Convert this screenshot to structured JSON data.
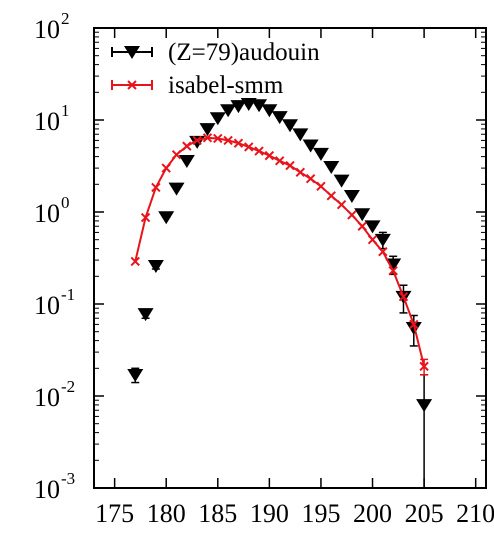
{
  "chart_data": {
    "type": "scatter",
    "title": "",
    "xlabel": "",
    "ylabel": "",
    "xlim": [
      173,
      211
    ],
    "ylim": [
      0.001,
      100
    ],
    "yscale": "log",
    "grid": false,
    "legend_position": "top-right",
    "x_ticks": [
      "175",
      "180",
      "185",
      "190",
      "195",
      "200",
      "205",
      "210"
    ],
    "y_ticks": [
      {
        "base": "10",
        "exp": "2"
      },
      {
        "base": "10",
        "exp": "1"
      },
      {
        "base": "10",
        "exp": "0"
      },
      {
        "base": "10",
        "exp": "-1"
      },
      {
        "base": "10",
        "exp": "-2"
      },
      {
        "base": "10",
        "exp": "-3"
      }
    ],
    "series": [
      {
        "name": "(Z=79)audouin",
        "color": "#000000",
        "marker": "filled-triangle-down",
        "points": [
          {
            "x": 177,
            "y": 0.017,
            "err": 0.003
          },
          {
            "x": 178,
            "y": 0.078,
            "err": 0.008
          },
          {
            "x": 179,
            "y": 0.26,
            "err": 0.02
          },
          {
            "x": 180,
            "y": 0.88
          },
          {
            "x": 181,
            "y": 1.8
          },
          {
            "x": 182,
            "y": 3.6
          },
          {
            "x": 183,
            "y": 5.8
          },
          {
            "x": 184,
            "y": 8.0
          },
          {
            "x": 185,
            "y": 10.5
          },
          {
            "x": 186,
            "y": 12.8
          },
          {
            "x": 187,
            "y": 14.2
          },
          {
            "x": 188,
            "y": 15.0
          },
          {
            "x": 189,
            "y": 14.5
          },
          {
            "x": 190,
            "y": 12.8
          },
          {
            "x": 191,
            "y": 10.8
          },
          {
            "x": 192,
            "y": 8.8
          },
          {
            "x": 193,
            "y": 7.0
          },
          {
            "x": 194,
            "y": 5.3
          },
          {
            "x": 195,
            "y": 4.3
          },
          {
            "x": 196,
            "y": 3.1
          },
          {
            "x": 197,
            "y": 2.2
          },
          {
            "x": 198,
            "y": 1.5
          },
          {
            "x": 199,
            "y": 0.95
          },
          {
            "x": 200,
            "y": 0.7
          },
          {
            "x": 201,
            "y": 0.5,
            "err": 0.1
          },
          {
            "x": 202,
            "y": 0.27,
            "err": 0.06
          },
          {
            "x": 203,
            "y": 0.12,
            "err": 0.04
          },
          {
            "x": 204,
            "y": 0.055,
            "err": 0.02
          },
          {
            "x": 205,
            "y": 0.008,
            "err": 0.009
          }
        ]
      },
      {
        "name": "isabel-smm",
        "color": "#e8141c",
        "marker": "cross",
        "line": true,
        "points": [
          {
            "x": 177,
            "y": 0.29
          },
          {
            "x": 178,
            "y": 0.87
          },
          {
            "x": 179,
            "y": 1.85
          },
          {
            "x": 180,
            "y": 3.0
          },
          {
            "x": 181,
            "y": 4.2
          },
          {
            "x": 182,
            "y": 5.2
          },
          {
            "x": 183,
            "y": 6.0
          },
          {
            "x": 184,
            "y": 6.4
          },
          {
            "x": 185,
            "y": 6.3
          },
          {
            "x": 186,
            "y": 6.0
          },
          {
            "x": 187,
            "y": 5.6
          },
          {
            "x": 188,
            "y": 5.1
          },
          {
            "x": 189,
            "y": 4.6
          },
          {
            "x": 190,
            "y": 4.1
          },
          {
            "x": 191,
            "y": 3.6
          },
          {
            "x": 192,
            "y": 3.2
          },
          {
            "x": 193,
            "y": 2.7
          },
          {
            "x": 194,
            "y": 2.3
          },
          {
            "x": 195,
            "y": 1.9
          },
          {
            "x": 196,
            "y": 1.5
          },
          {
            "x": 197,
            "y": 1.2
          },
          {
            "x": 198,
            "y": 0.93
          },
          {
            "x": 199,
            "y": 0.7
          },
          {
            "x": 200,
            "y": 0.5
          },
          {
            "x": 201,
            "y": 0.37
          },
          {
            "x": 202,
            "y": 0.23
          },
          {
            "x": 203,
            "y": 0.12
          },
          {
            "x": 204,
            "y": 0.06
          },
          {
            "x": 205,
            "y": 0.021,
            "err": 0.004
          }
        ]
      }
    ]
  }
}
